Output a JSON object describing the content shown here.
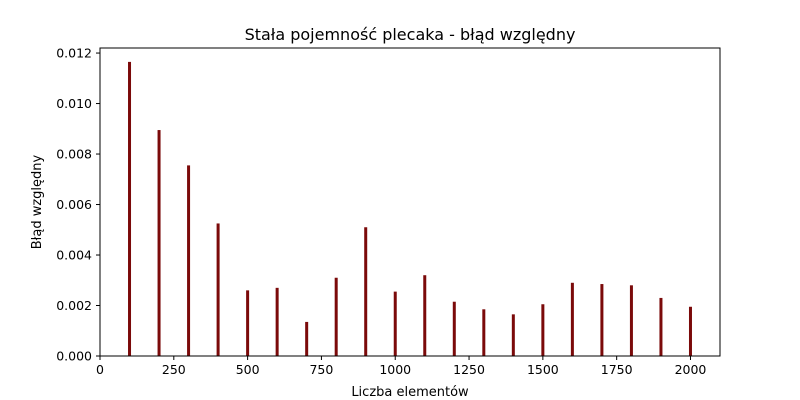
{
  "chart_data": {
    "type": "bar",
    "title": "Stała pojemność plecaka - błąd względny",
    "xlabel": "Liczba elementów",
    "ylabel": "Błąd względny",
    "x": [
      100,
      200,
      300,
      400,
      500,
      600,
      700,
      800,
      900,
      1000,
      1100,
      1200,
      1300,
      1400,
      1500,
      1600,
      1700,
      1800,
      1900,
      2000
    ],
    "values": [
      0.01165,
      0.00895,
      0.00755,
      0.00525,
      0.0026,
      0.0027,
      0.00135,
      0.0031,
      0.0051,
      0.00255,
      0.0032,
      0.00215,
      0.00185,
      0.00165,
      0.00205,
      0.0029,
      0.00285,
      0.0028,
      0.0023,
      0.00195
    ],
    "xlim": [
      0,
      2100
    ],
    "ylim": [
      0,
      0.0122
    ],
    "xticks": [
      0,
      250,
      500,
      750,
      1000,
      1250,
      1500,
      1750,
      2000
    ],
    "xtick_labels": [
      "0",
      "250",
      "500",
      "750",
      "1000",
      "1250",
      "1500",
      "1750",
      "2000"
    ],
    "yticks": [
      0,
      0.002,
      0.004,
      0.006,
      0.008,
      0.01,
      0.012
    ],
    "ytick_labels": [
      "0.000",
      "0.002",
      "0.004",
      "0.006",
      "0.008",
      "0.010",
      "0.012"
    ],
    "bar_color": "#7b0a0a",
    "grid": false,
    "legend": false
  }
}
